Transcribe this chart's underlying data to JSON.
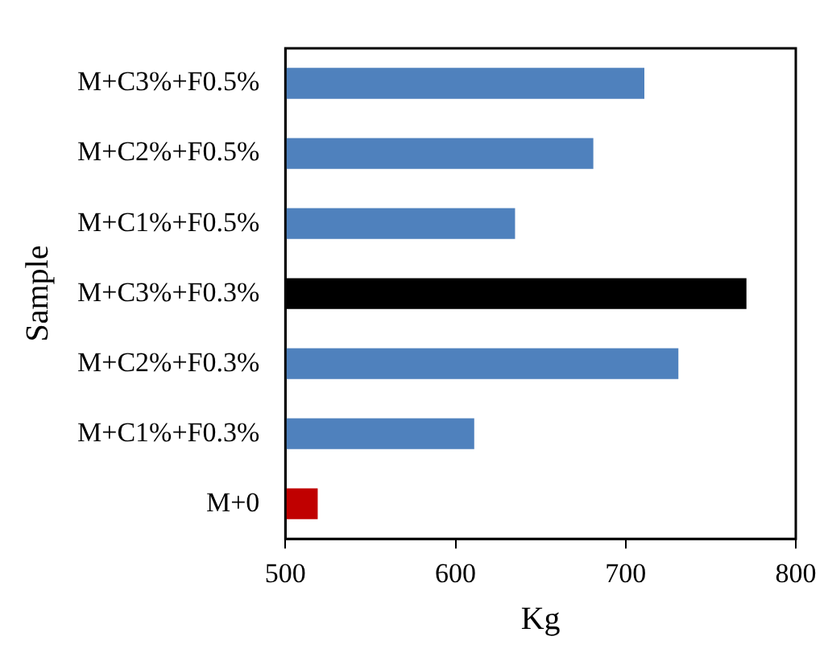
{
  "chart_data": {
    "type": "bar",
    "orientation": "horizontal",
    "xlabel": "Kg",
    "ylabel": "Sample",
    "categories": [
      "M+C3%+F0.5%",
      "M+C2%+F0.5%",
      "M+C1%+F0.5%",
      "M+C3%+F0.3%",
      "M+C2%+F0.3%",
      "M+C1%+F0.3%",
      "M+0"
    ],
    "values": [
      711,
      681,
      635,
      771,
      731,
      611,
      519
    ],
    "colors": [
      "#4f81bd",
      "#4f81bd",
      "#4f81bd",
      "#000000",
      "#4f81bd",
      "#4f81bd",
      "#c00000"
    ],
    "xlim": [
      500,
      800
    ],
    "xticks": [
      500,
      600,
      700,
      800
    ],
    "grid": false,
    "legend": false
  }
}
